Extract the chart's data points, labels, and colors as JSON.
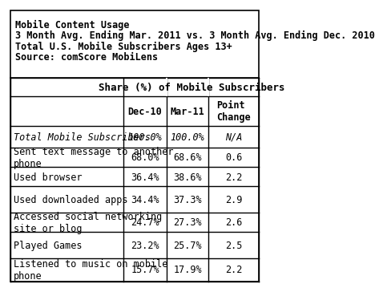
{
  "title_lines": [
    "Mobile Content Usage",
    "3 Month Avg. Ending Mar. 2011 vs. 3 Month Avg. Ending Dec. 2010",
    "Total U.S. Mobile Subscribers Ages 13+",
    "Source: comScore MobiLens"
  ],
  "col_header_top": "Share (%) of Mobile Subscribers",
  "col_headers": [
    "Dec-10",
    "Mar-11",
    "Point\nChange"
  ],
  "row_labels": [
    "Total Mobile Subscribers",
    "Sent text message to another\nphone",
    "Used browser",
    "Used downloaded apps",
    "Accessed social networking\nsite or blog",
    "Played Games",
    "Listened to music on mobile\nphone"
  ],
  "row_italic": [
    true,
    false,
    false,
    false,
    false,
    false,
    false
  ],
  "col1_values": [
    "100.0%",
    "68.0%",
    "36.4%",
    "34.4%",
    "24.7%",
    "23.2%",
    "15.7%"
  ],
  "col2_values": [
    "100.0%",
    "68.6%",
    "38.6%",
    "37.3%",
    "27.3%",
    "25.7%",
    "17.9%"
  ],
  "col3_values": [
    "N/A",
    "0.6",
    "2.2",
    "2.9",
    "2.6",
    "2.5",
    "2.2"
  ],
  "col3_italic": [
    true,
    false,
    false,
    false,
    false,
    false,
    false
  ],
  "bg_color": "#ffffff",
  "border_color": "#000000",
  "title_fontsize": 8.5,
  "cell_fontsize": 8.5
}
